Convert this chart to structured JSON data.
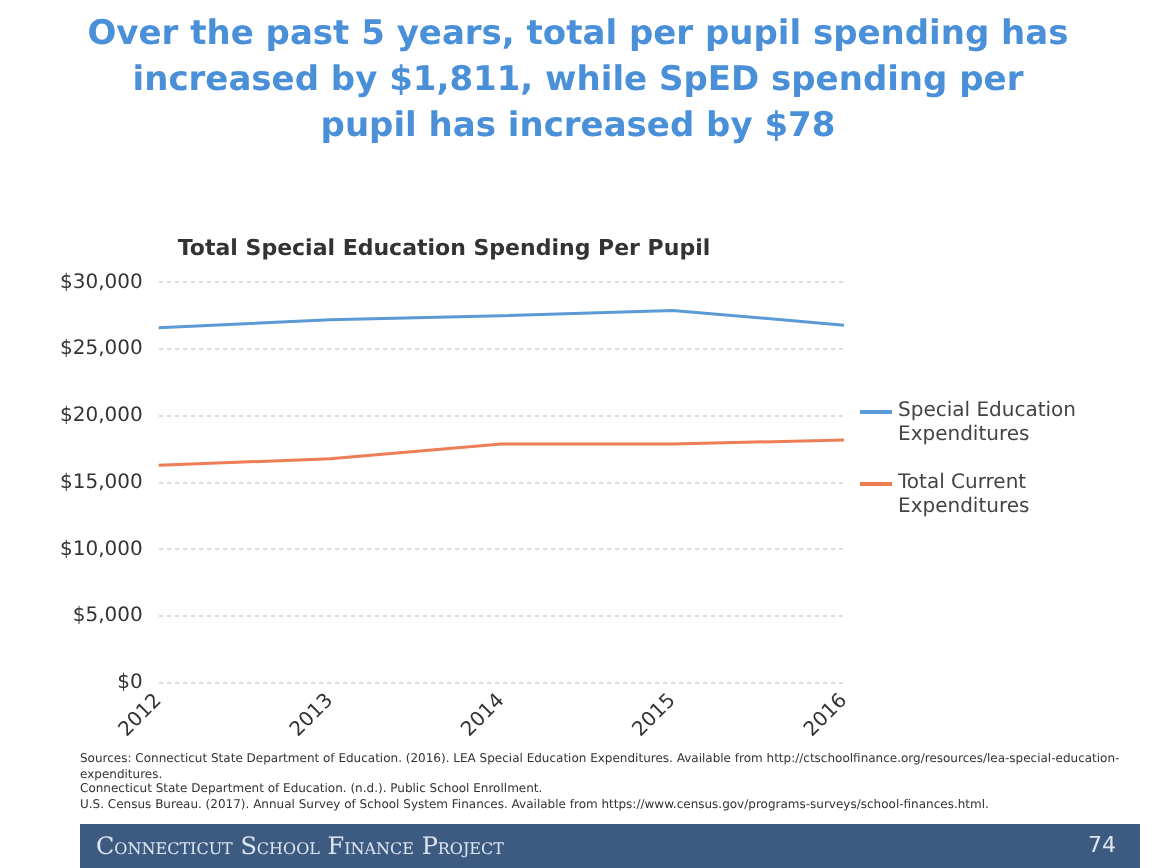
{
  "chart_data": {
    "type": "line",
    "title": "Over the past 5 years, total per pupil spending has increased by $1,811, while SpED spending per pupil has increased by $78",
    "subtitle": "Total Special Education Spending Per Pupil",
    "categories": [
      "2012",
      "2013",
      "2014",
      "2015",
      "2016"
    ],
    "series": [
      {
        "name": "Special Education Expenditures",
        "color": "#5b9bd5",
        "values": [
          26600,
          27200,
          27500,
          27900,
          26800
        ]
      },
      {
        "name": "Total Current Expenditures",
        "color": "#ed7d55",
        "values": [
          16300,
          16800,
          17900,
          17900,
          18200
        ]
      }
    ],
    "ylim": [
      0,
      30000
    ],
    "yticks": [
      {
        "value": 0,
        "label": "$0"
      },
      {
        "value": 5000,
        "label": "$5,000"
      },
      {
        "value": 10000,
        "label": "$10,000"
      },
      {
        "value": 15000,
        "label": "$15,000"
      },
      {
        "value": 20000,
        "label": "$20,000"
      },
      {
        "value": 25000,
        "label": "$25,000"
      },
      {
        "value": 30000,
        "label": "$30,000"
      }
    ],
    "grid": "y",
    "legend": "right",
    "marker": "none",
    "line_style": "solid",
    "annotations": [
      "Sources: Connecticut State Department of Education. (2016). LEA Special Education Expenditures. Available from http://ctschoolfinance.org/resources/lea-special-education-expenditures.",
      "Connecticut State Department of Education. (n.d.). Public School Enrollment.",
      "U.S. Census Bureau. (2017). Annual Survey of School System Finances. Available from https://www.census.gov/programs-surveys/school-finances.html.",
      "Connecticut School Finance Project",
      "74"
    ]
  }
}
